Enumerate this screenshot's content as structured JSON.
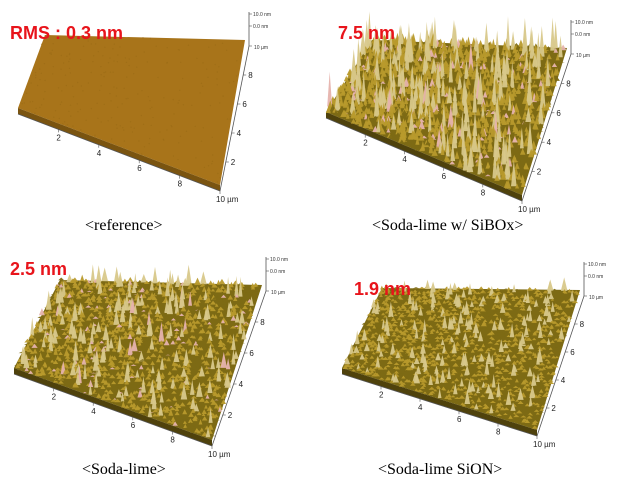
{
  "panels": [
    {
      "rms_label": "RMS : 0.3 nm",
      "caption": "<reference>",
      "x_ticks": [
        "2",
        "4",
        "6",
        "8",
        "10 µm"
      ],
      "y_ticks": [
        "2",
        "4",
        "6",
        "8",
        "10 µm"
      ],
      "z_ticks": [
        "10.0 nm",
        "0.0 nm"
      ],
      "roughness": 0.05
    },
    {
      "rms_label": "7.5 nm",
      "caption": "<Soda-lime w/ SiBOx>",
      "x_ticks": [
        "2",
        "4",
        "6",
        "8",
        "10 µm"
      ],
      "y_ticks": [
        "2",
        "4",
        "6",
        "8",
        "10 µm"
      ],
      "z_ticks": [
        "10.0 nm",
        "0.0 nm"
      ],
      "roughness": 1.0
    },
    {
      "rms_label": "2.5 nm",
      "caption": "<Soda-lime>",
      "x_ticks": [
        "2",
        "4",
        "6",
        "8",
        "10 µm"
      ],
      "y_ticks": [
        "2",
        "4",
        "6",
        "8",
        "10 µm"
      ],
      "z_ticks": [
        "10.0 nm",
        "0.0 nm"
      ],
      "roughness": 0.55
    },
    {
      "rms_label": "1.9 nm",
      "caption": "<Soda-lime SiON>",
      "x_ticks": [
        "2",
        "4",
        "6",
        "8",
        "10 µm"
      ],
      "y_ticks": [
        "2",
        "4",
        "6",
        "8",
        "10 µm"
      ],
      "z_ticks": [
        "10.0 nm",
        "0.0 nm"
      ],
      "roughness": 0.4
    }
  ],
  "colors": {
    "surface_flat": "#a8741a",
    "surface_base": "#7d6a14",
    "peak_low": "#b89a2c",
    "peak_high": "#d8c88a",
    "peak_pink": "#e6b3ad",
    "label_red": "#e8141b"
  }
}
